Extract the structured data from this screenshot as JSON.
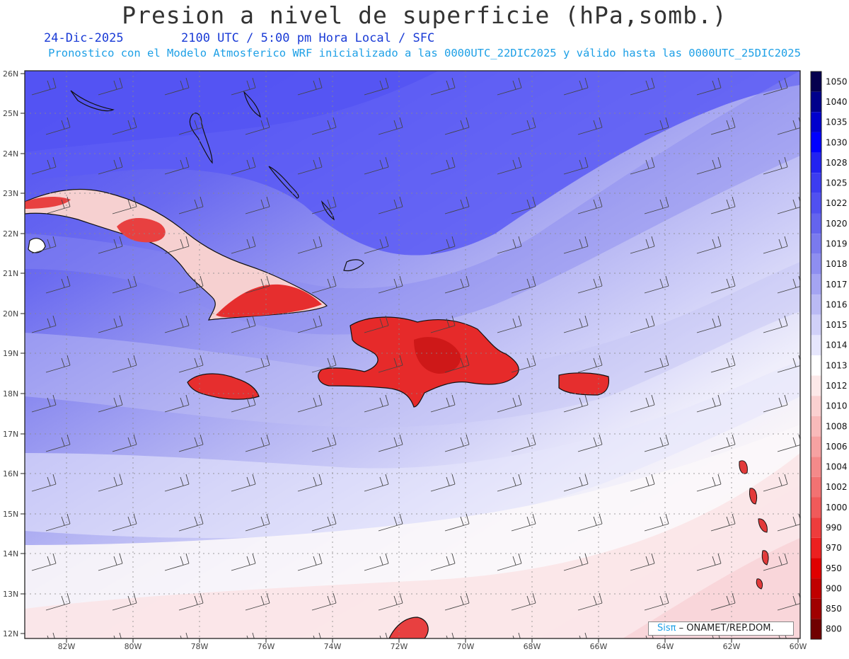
{
  "header": {
    "title": "Presion a nivel de superficie (hPa,somb.)",
    "date": "24-Dic-2025",
    "time": "2100 UTC / 5:00 pm Hora Local / SFC",
    "forecast": "Pronostico con el Modelo Atmosferico WRF inicializado a las 0000UTC_22DIC2025 y válido hasta las  0000UTC_25DIC2025"
  },
  "axes": {
    "lat_labels": [
      "26N",
      "25N",
      "24N",
      "23N",
      "22N",
      "21N",
      "20N",
      "19N",
      "18N",
      "17N",
      "16N",
      "15N",
      "14N",
      "13N",
      "12N"
    ],
    "lon_labels": [
      "82W",
      "80W",
      "78W",
      "76W",
      "74W",
      "72W",
      "70W",
      "68W",
      "66W",
      "64W",
      "62W",
      "60W"
    ]
  },
  "colorbar": {
    "levels": [
      "1050",
      "1040",
      "1035",
      "1030",
      "1028",
      "1025",
      "1022",
      "1020",
      "1019",
      "1018",
      "1017",
      "1016",
      "1015",
      "1014",
      "1013",
      "1012",
      "1010",
      "1008",
      "1006",
      "1004",
      "1002",
      "1000",
      "990",
      "970",
      "950",
      "900",
      "850",
      "800"
    ],
    "colors": [
      "#05004e",
      "#00008b",
      "#0000cd",
      "#0000ff",
      "#2222f0",
      "#3c3cf0",
      "#5050f0",
      "#6464ee",
      "#7a7aee",
      "#8e8ef0",
      "#a4a4f2",
      "#babaf4",
      "#d0d0f8",
      "#e6e6fc",
      "#ffffff",
      "#fce8e8",
      "#fad0d0",
      "#f8baba",
      "#f6a2a2",
      "#f48a8a",
      "#f27272",
      "#f05a5a",
      "#ee3c3c",
      "#ec2020",
      "#e00000",
      "#c00000",
      "#a00000",
      "#700000"
    ]
  },
  "credit": {
    "logo": "Sisπ",
    "text": "– ONAMET/REP.DOM."
  },
  "map_colors": {
    "high": "#5a5af5",
    "mid": "#9e9ef0",
    "low": "#d6d6f8",
    "neutral": "#fbf8fc",
    "pink": "#fbe4e6",
    "land": "#e23a3a"
  }
}
